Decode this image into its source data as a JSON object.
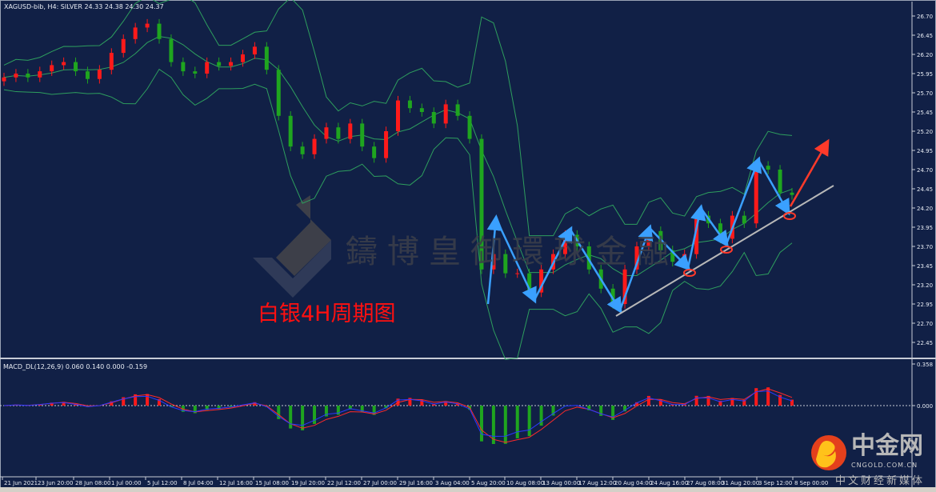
{
  "header": {
    "text": "XAGUSD-bib, H4:  SILVER  24.33 24.38 24.30 24.37"
  },
  "macd_label": "MACD_DL(12,26,9) 0.060 0.140 0.000 -0.159",
  "caption": "白银4H周期图",
  "watermark": "鑄博皇御環球金融",
  "logo": {
    "name": "中金网",
    "domain": "CNGOLD.COM.CN",
    "slogan": "中文财经新媒体"
  },
  "colors": {
    "background": "#112046",
    "bull": "#ff1a1a",
    "bear": "#1fa51f",
    "bands": "#2e9e5e",
    "annotation_arrows": "#3aa0ff",
    "trendline": "#b8b8b8",
    "target_arrow": "#ff3a2a"
  },
  "chart_data": {
    "type": "candlestick",
    "symbol": "XAGUSD-bib",
    "timeframe": "H4",
    "ylim": [
      22.35,
      26.9
    ],
    "y_ticks": [
      "26.70",
      "26.45",
      "26.20",
      "25.95",
      "25.70",
      "25.45",
      "25.20",
      "24.95",
      "24.70",
      "24.45",
      "24.20",
      "23.95",
      "23.70",
      "23.45",
      "23.20",
      "22.95",
      "22.70",
      "22.45"
    ],
    "x_ticks": [
      "21 Jun 2021",
      "23 Jun 20:00",
      "28 Jun 08:00",
      "1 Jul 00:00",
      "5 Jul 12:00",
      "8 Jul 04:00",
      "12 Jul 16:00",
      "15 Jul 08:00",
      "19 Jul 20:00",
      "22 Jul 12:00",
      "27 Jul 00:00",
      "29 Jul 16:00",
      "3 Aug 04:00",
      "5 Aug 20:00",
      "10 Aug 08:00",
      "13 Aug 00:00",
      "17 Aug 12:00",
      "20 Aug 04:00",
      "24 Aug 16:00",
      "27 Aug 08:00",
      "31 Aug 20:00",
      "3 Sep 12:00",
      "8 Sep 00:00"
    ],
    "closes": [
      25.9,
      25.95,
      25.9,
      25.98,
      26.06,
      26.1,
      25.98,
      25.88,
      26.0,
      26.22,
      26.4,
      26.55,
      26.6,
      26.4,
      26.1,
      25.98,
      25.95,
      26.1,
      26.05,
      26.1,
      26.2,
      26.3,
      26.0,
      25.4,
      25.0,
      24.9,
      25.1,
      25.25,
      25.1,
      25.3,
      25.0,
      24.85,
      25.2,
      25.6,
      25.5,
      25.45,
      25.3,
      25.55,
      25.4,
      25.1,
      23.4,
      23.6,
      23.35,
      23.35,
      23.1,
      23.4,
      23.6,
      23.85,
      23.7,
      23.4,
      23.15,
      22.95,
      23.4,
      23.7,
      23.9,
      23.65,
      23.5,
      23.6,
      24.1,
      24.0,
      23.8,
      24.1,
      24.0,
      24.75,
      24.7,
      24.4,
      24.37
    ],
    "last_ohlc": {
      "open": 24.33,
      "high": 24.38,
      "low": 24.3,
      "close": 24.37
    },
    "indicators": [
      "Bollinger Bands",
      "MACD_DL(12,26,9)"
    ],
    "macd": {
      "values": [
        0.06,
        0.14,
        0.0,
        -0.159
      ],
      "ylim_top": "0.358",
      "zero": "0.000"
    }
  }
}
